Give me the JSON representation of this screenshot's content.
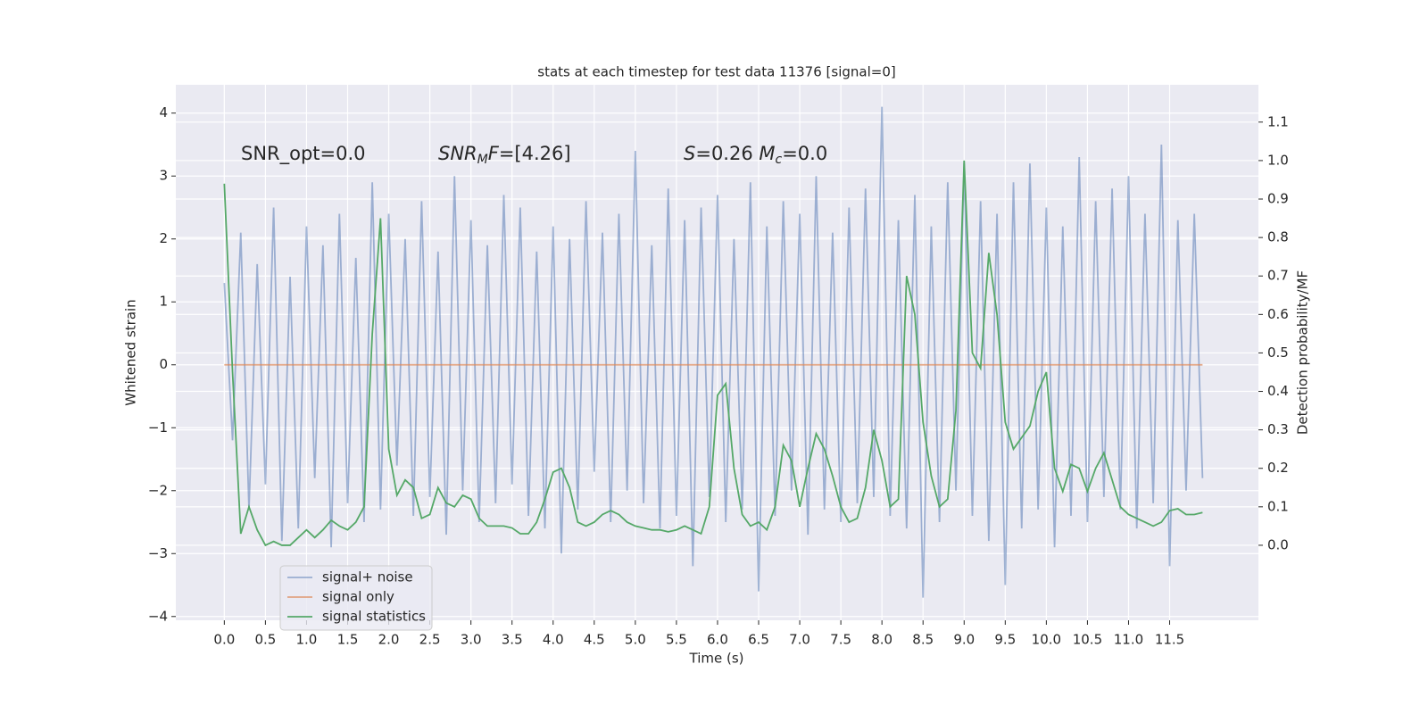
{
  "chart_data": {
    "type": "line",
    "title": "stats at each timestep for test data 11376 [signal=0]",
    "xlabel": "Time (s)",
    "ylabel": "Whitened strain",
    "y2label": "Detection probability/MF",
    "annotations": [
      {
        "parts": [
          {
            "t": "SNR_opt=0.0"
          }
        ]
      },
      {
        "parts": [
          {
            "t": "SNR",
            "style": "italic"
          },
          {
            "t": "M",
            "style": "sub"
          },
          {
            "t": "F",
            "style": "italic"
          },
          {
            "t": "=[4.26]"
          }
        ]
      },
      {
        "parts": [
          {
            "t": "S",
            "style": "italic"
          },
          {
            "t": "=0.26   "
          },
          {
            "t": "M",
            "style": "italic"
          },
          {
            "t": "c",
            "style": "sub"
          },
          {
            "t": "=0.0"
          }
        ]
      }
    ],
    "x": [
      0,
      0.1,
      0.2,
      0.3,
      0.4,
      0.5,
      0.6,
      0.7,
      0.8,
      0.9,
      1,
      1.1,
      1.2,
      1.3,
      1.4,
      1.5,
      1.6,
      1.7,
      1.8,
      1.9,
      2,
      2.1,
      2.2,
      2.3,
      2.4,
      2.5,
      2.6,
      2.7,
      2.8,
      2.9,
      3,
      3.1,
      3.2,
      3.3,
      3.4,
      3.5,
      3.6,
      3.7,
      3.8,
      3.9,
      4,
      4.1,
      4.2,
      4.3,
      4.4,
      4.5,
      4.6,
      4.7,
      4.8,
      4.9,
      5,
      5.1,
      5.2,
      5.3,
      5.4,
      5.5,
      5.6,
      5.7,
      5.8,
      5.9,
      6,
      6.1,
      6.2,
      6.3,
      6.4,
      6.5,
      6.6,
      6.7,
      6.8,
      6.9,
      7,
      7.1,
      7.2,
      7.3,
      7.4,
      7.5,
      7.6,
      7.7,
      7.8,
      7.9,
      8,
      8.1,
      8.2,
      8.3,
      8.4,
      8.5,
      8.6,
      8.7,
      8.8,
      8.9,
      9,
      9.1,
      9.2,
      9.3,
      9.4,
      9.5,
      9.6,
      9.7,
      9.8,
      9.9,
      10,
      10.1,
      10.2,
      10.3,
      10.4,
      10.5,
      10.6,
      10.7,
      10.8,
      10.9,
      11,
      11.1,
      11.2,
      11.3,
      11.4,
      11.5,
      11.6,
      11.7,
      11.8,
      11.9
    ],
    "series": [
      {
        "name": "signal+ noise",
        "color": "#4c72b0",
        "opacity": 0.5,
        "values": [
          1.3,
          -1.2,
          2.1,
          -2.3,
          1.6,
          -1.9,
          2.5,
          -2.8,
          1.4,
          -2.6,
          2.2,
          -1.8,
          1.9,
          -2.9,
          2.4,
          -2.2,
          1.7,
          -2.5,
          2.9,
          -2.3,
          2.4,
          -1.6,
          2.0,
          -2.4,
          2.6,
          -2.1,
          1.8,
          -2.7,
          3.0,
          -2.0,
          2.3,
          -2.5,
          1.9,
          -2.2,
          2.7,
          -1.9,
          2.5,
          -2.4,
          1.8,
          -2.6,
          2.2,
          -3.0,
          2.0,
          -2.3,
          2.6,
          -1.7,
          2.1,
          -2.5,
          2.4,
          -2.0,
          3.4,
          -2.2,
          1.9,
          -2.6,
          2.8,
          -2.4,
          2.3,
          -3.2,
          2.5,
          -2.1,
          2.7,
          -2.5,
          2.0,
          -2.3,
          2.9,
          -3.6,
          2.2,
          -2.4,
          2.6,
          -2.0,
          2.4,
          -2.7,
          3.0,
          -2.3,
          2.1,
          -2.5,
          2.5,
          -2.2,
          2.8,
          -2.1,
          4.1,
          -2.4,
          2.3,
          -2.6,
          2.7,
          -3.7,
          2.2,
          -2.5,
          2.9,
          -2.0,
          3.2,
          -2.4,
          2.6,
          -2.8,
          2.4,
          -3.5,
          2.9,
          -2.6,
          3.2,
          -2.3,
          2.5,
          -2.9,
          2.2,
          -2.4,
          3.3,
          -2.5,
          2.6,
          -2.1,
          2.8,
          -2.3,
          3.0,
          -2.6,
          2.4,
          -2.2,
          3.5,
          -3.2,
          2.3,
          -2.0,
          2.4,
          -1.8
        ]
      },
      {
        "name": "signal only",
        "color": "#dd8452",
        "opacity": 0.7,
        "values": [
          0,
          0,
          0,
          0,
          0,
          0,
          0,
          0,
          0,
          0,
          0,
          0,
          0,
          0,
          0,
          0,
          0,
          0,
          0,
          0,
          0,
          0,
          0,
          0,
          0,
          0,
          0,
          0,
          0,
          0,
          0,
          0,
          0,
          0,
          0,
          0,
          0,
          0,
          0,
          0,
          0,
          0,
          0,
          0,
          0,
          0,
          0,
          0,
          0,
          0,
          0,
          0,
          0,
          0,
          0,
          0,
          0,
          0,
          0,
          0,
          0,
          0,
          0,
          0,
          0,
          0,
          0,
          0,
          0,
          0,
          0,
          0,
          0,
          0,
          0,
          0,
          0,
          0,
          0,
          0,
          0,
          0,
          0,
          0,
          0,
          0,
          0,
          0,
          0,
          0,
          0,
          0,
          0,
          0,
          0,
          0,
          0,
          0,
          0,
          0,
          0,
          0,
          0,
          0,
          0,
          0,
          0,
          0,
          0,
          0,
          0,
          0,
          0,
          0,
          0,
          0,
          0,
          0,
          0,
          0
        ]
      },
      {
        "name": "signal statistics",
        "color": "#55a868",
        "opacity": 1,
        "axis": "y2",
        "values": [
          0.94,
          0.45,
          0.03,
          0.1,
          0.04,
          0.0,
          0.01,
          0.0,
          0.0,
          0.02,
          0.04,
          0.02,
          0.04,
          0.065,
          0.05,
          0.04,
          0.06,
          0.1,
          0.55,
          0.85,
          0.25,
          0.13,
          0.17,
          0.15,
          0.07,
          0.08,
          0.15,
          0.11,
          0.1,
          0.13,
          0.12,
          0.07,
          0.05,
          0.05,
          0.05,
          0.045,
          0.03,
          0.03,
          0.06,
          0.12,
          0.19,
          0.2,
          0.15,
          0.06,
          0.05,
          0.06,
          0.08,
          0.09,
          0.08,
          0.06,
          0.05,
          0.045,
          0.04,
          0.04,
          0.035,
          0.04,
          0.05,
          0.04,
          0.03,
          0.1,
          0.39,
          0.42,
          0.2,
          0.08,
          0.05,
          0.06,
          0.04,
          0.1,
          0.26,
          0.22,
          0.1,
          0.2,
          0.29,
          0.25,
          0.18,
          0.1,
          0.06,
          0.07,
          0.15,
          0.3,
          0.22,
          0.1,
          0.12,
          0.7,
          0.6,
          0.32,
          0.18,
          0.1,
          0.12,
          0.35,
          1.0,
          0.5,
          0.46,
          0.76,
          0.6,
          0.32,
          0.25,
          0.28,
          0.31,
          0.4,
          0.45,
          0.2,
          0.14,
          0.21,
          0.2,
          0.14,
          0.2,
          0.24,
          0.17,
          0.1,
          0.08,
          0.07,
          0.06,
          0.05,
          0.06,
          0.09,
          0.095,
          0.08,
          0.08,
          0.085
        ]
      }
    ],
    "xlim": [
      -0.59,
      12.58
    ],
    "xticks": [
      {
        "value": 0,
        "label": "0.0"
      },
      {
        "value": 0.5,
        "label": "0.5"
      },
      {
        "value": 1,
        "label": "1.0"
      },
      {
        "value": 1.5,
        "label": "1.5"
      },
      {
        "value": 2,
        "label": "2.0"
      },
      {
        "value": 2.5,
        "label": "2.5"
      },
      {
        "value": 3,
        "label": "3.0"
      },
      {
        "value": 3.5,
        "label": "3.5"
      },
      {
        "value": 4,
        "label": "4.0"
      },
      {
        "value": 4.5,
        "label": "4.5"
      },
      {
        "value": 5,
        "label": "5.0"
      },
      {
        "value": 5.5,
        "label": "5.5"
      },
      {
        "value": 6,
        "label": "6.0"
      },
      {
        "value": 6.5,
        "label": "6.5"
      },
      {
        "value": 7,
        "label": "7.0"
      },
      {
        "value": 7.5,
        "label": "7.5"
      },
      {
        "value": 8,
        "label": "8.0"
      },
      {
        "value": 8.5,
        "label": "8.5"
      },
      {
        "value": 9,
        "label": "9.0"
      },
      {
        "value": 9.5,
        "label": "9.5"
      },
      {
        "value": 10,
        "label": "10.0"
      },
      {
        "value": 10.5,
        "label": "10.5"
      },
      {
        "value": 11,
        "label": "11.0"
      },
      {
        "value": 11.5,
        "label": "11.5"
      }
    ],
    "ylim": [
      -4.06,
      4.45
    ],
    "yticks": [
      {
        "value": -4,
        "label": "−4"
      },
      {
        "value": -3,
        "label": "−3"
      },
      {
        "value": -2,
        "label": "−2"
      },
      {
        "value": -1,
        "label": "−1"
      },
      0,
      1,
      2,
      3,
      4
    ],
    "y2lim": [
      -0.195,
      1.197
    ],
    "y2ticks": [
      {
        "value": 0,
        "label": "0.0"
      },
      {
        "value": 0.1,
        "label": "0.1"
      },
      {
        "value": 0.2,
        "label": "0.2"
      },
      {
        "value": 0.3,
        "label": "0.3"
      },
      {
        "value": 0.4,
        "label": "0.4"
      },
      {
        "value": 0.5,
        "label": "0.5"
      },
      {
        "value": 0.6,
        "label": "0.6"
      },
      {
        "value": 0.7,
        "label": "0.7"
      },
      {
        "value": 0.8,
        "label": "0.8"
      },
      {
        "value": 0.9,
        "label": "0.9"
      },
      {
        "value": 1,
        "label": "1.0"
      },
      {
        "value": 1.1,
        "label": "1.1"
      }
    ],
    "grid": true,
    "legend": "lower left"
  }
}
